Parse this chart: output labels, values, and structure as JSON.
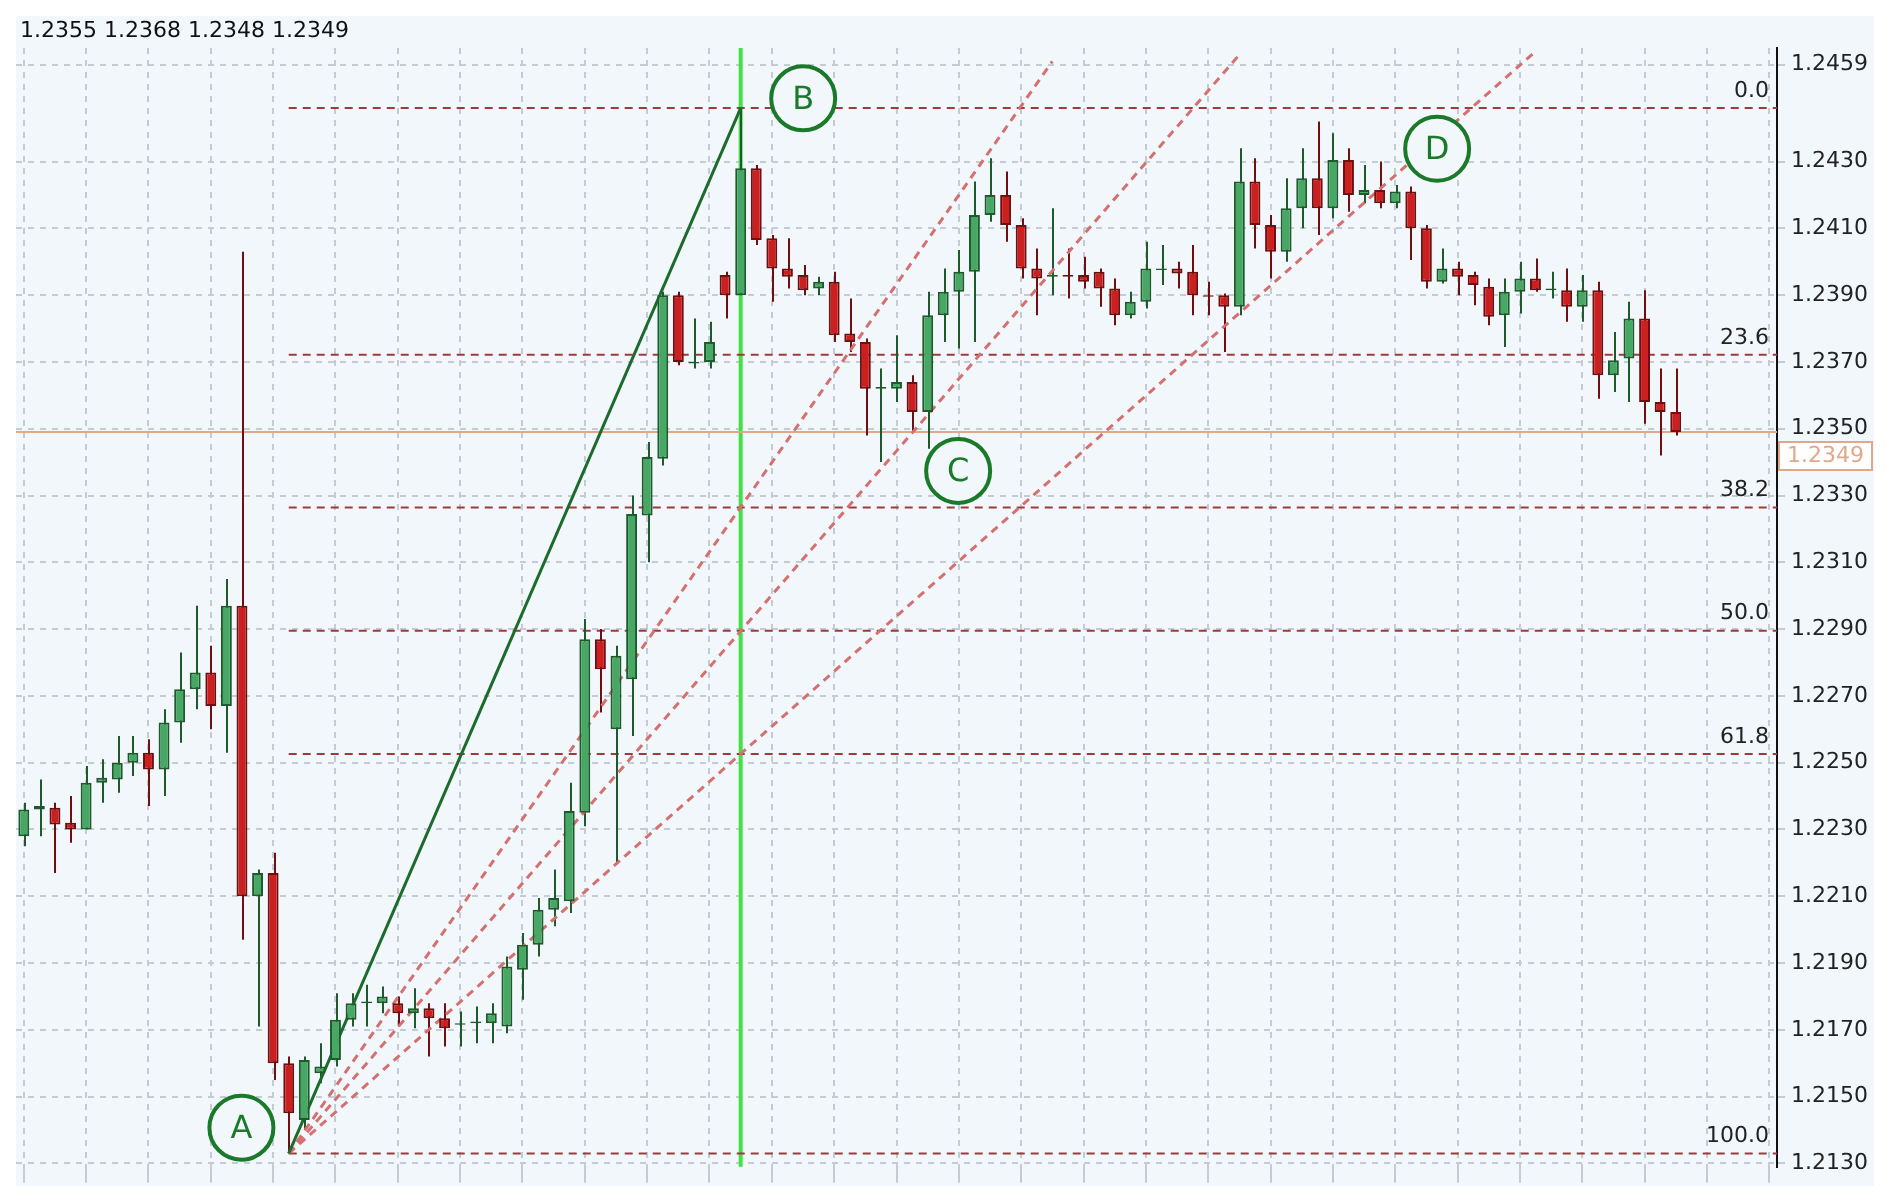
{
  "chart_data": {
    "type": "candlestick",
    "tick_labels": "y",
    "grid": true,
    "categories": [
      null,
      null,
      null,
      null,
      null,
      null,
      null,
      null,
      null,
      null,
      null,
      null,
      null,
      null,
      null,
      null,
      null,
      null,
      null,
      null,
      null,
      null,
      null,
      null,
      null,
      null,
      null,
      null,
      null,
      null,
      null,
      null,
      null,
      null,
      null,
      null,
      null,
      null,
      null,
      null,
      null,
      null,
      null,
      null,
      null,
      null,
      null,
      null,
      null,
      null,
      null,
      null,
      null,
      null,
      null,
      null,
      null,
      null,
      null,
      null,
      null,
      null,
      null,
      null,
      null,
      null,
      null,
      null,
      null,
      null,
      null,
      null,
      null,
      null,
      null,
      null,
      null,
      null,
      null,
      null,
      null,
      null,
      null,
      null,
      null,
      null,
      null,
      null,
      null,
      null,
      null,
      null,
      null,
      null,
      null,
      null,
      null,
      null,
      null,
      null,
      null,
      null,
      null,
      null,
      null,
      null,
      null,
      null,
      null,
      null,
      null,
      null,
      null
    ],
    "ylim": [
      1.2129,
      1.2464
    ],
    "yticks": [
      {
        "value": 1.213,
        "label": "1.2130"
      },
      {
        "value": 1.215,
        "label": "1.2150"
      },
      {
        "value": 1.217,
        "label": "1.2170"
      },
      {
        "value": 1.219,
        "label": "1.2190"
      },
      {
        "value": 1.221,
        "label": "1.2210"
      },
      {
        "value": 1.223,
        "label": "1.2230"
      },
      {
        "value": 1.225,
        "label": "1.2250"
      },
      {
        "value": 1.227,
        "label": "1.2270"
      },
      {
        "value": 1.229,
        "label": "1.2290"
      },
      {
        "value": 1.231,
        "label": "1.2310"
      },
      {
        "value": 1.233,
        "label": "1.2330"
      },
      {
        "value": 1.235,
        "label": "1.2350"
      },
      {
        "value": 1.237,
        "label": "1.2370"
      },
      {
        "value": 1.239,
        "label": "1.2390"
      },
      {
        "value": 1.241,
        "label": "1.2410"
      },
      {
        "value": 1.243,
        "label": "1.2430"
      },
      1.2459
    ],
    "y2lim": [
      101.28,
      -5.75
    ],
    "ohlc": [
      [
        1.2228,
        1.2238,
        1.2225,
        1.2236
      ],
      [
        1.2236,
        1.2245,
        1.2228,
        1.2237
      ],
      [
        1.22365,
        1.2238,
        1.2217,
        1.22315
      ],
      [
        1.2232,
        1.224,
        1.2226,
        1.223
      ],
      [
        1.223,
        1.2249,
        1.223,
        1.2244
      ],
      [
        1.2244,
        1.2251,
        1.2238,
        1.22455
      ],
      [
        1.2245,
        1.2258,
        1.2241,
        1.225
      ],
      [
        1.225,
        1.2258,
        1.2246,
        1.2253
      ],
      [
        1.2253,
        1.2257,
        1.2237,
        1.2248
      ],
      [
        1.2248,
        1.2266,
        1.224,
        1.2262
      ],
      [
        1.2262,
        1.2283,
        1.2256,
        1.2272
      ],
      [
        1.2272,
        1.2297,
        1.2266,
        1.2277
      ],
      [
        1.2277,
        1.2285,
        1.226,
        1.2267
      ],
      [
        1.2267,
        1.2305,
        1.2253,
        1.2297
      ],
      [
        1.2297,
        1.2403,
        1.2197,
        1.221
      ],
      [
        1.221,
        1.2218,
        1.2171,
        1.2217
      ],
      [
        1.2217,
        1.2223,
        1.2155,
        1.216
      ],
      [
        1.216,
        1.2162,
        1.2133,
        1.2145
      ],
      [
        1.2143,
        1.2162,
        1.214,
        1.2161
      ],
      [
        1.2157,
        1.2166,
        1.2154,
        1.2159
      ],
      [
        1.2161,
        1.2181,
        1.2159,
        1.2173
      ],
      [
        1.2173,
        1.2181,
        1.2171,
        1.2178
      ],
      [
        1.2178,
        1.21835,
        1.2171,
        1.21785
      ],
      [
        1.2178,
        1.2183,
        1.2175,
        1.218
      ],
      [
        1.2178,
        1.218,
        1.2171,
        1.2175
      ],
      [
        1.2175,
        1.21825,
        1.21705,
        1.21765
      ],
      [
        1.21765,
        1.2178,
        1.2162,
        1.21735
      ],
      [
        1.21735,
        1.2178,
        1.2165,
        1.21705
      ],
      [
        1.21715,
        1.21755,
        1.2165,
        1.2172
      ],
      [
        1.2172,
        1.2177,
        1.2166,
        1.21725
      ],
      [
        1.2172,
        1.2178,
        1.2166,
        1.2175
      ],
      [
        1.2171,
        1.2192,
        1.2169,
        1.2189
      ],
      [
        1.2188,
        1.2199,
        1.2179,
        1.21955
      ],
      [
        1.21955,
        1.22095,
        1.2192,
        1.2206
      ],
      [
        1.2206,
        1.2218,
        1.2201,
        1.22095
      ],
      [
        1.22085,
        1.2244,
        1.2205,
        1.22355
      ],
      [
        1.2235,
        1.2293,
        1.2231,
        1.2287
      ],
      [
        1.2287,
        1.229,
        1.2265,
        1.2278
      ],
      [
        1.226,
        1.2285,
        1.222,
        1.2282
      ],
      [
        1.2275,
        1.233,
        1.2258,
        1.23245
      ],
      [
        1.2324,
        1.2346,
        1.231,
        1.23415
      ],
      [
        1.2341,
        1.2391,
        1.2339,
        1.239
      ],
      [
        1.239,
        1.2391,
        1.2369,
        1.237
      ],
      [
        1.23695,
        1.2383,
        1.2368,
        1.237
      ],
      [
        1.237,
        1.2382,
        1.2368,
        1.2376
      ],
      [
        1.2396,
        1.2397,
        1.2383,
        1.239
      ],
      [
        1.239,
        1.2446,
        1.239,
        1.2428
      ],
      [
        1.2428,
        1.2429,
        1.2405,
        1.24065
      ],
      [
        1.2407,
        1.2408,
        1.2388,
        1.2398
      ],
      [
        1.2398,
        1.2407,
        1.2392,
        1.23955
      ],
      [
        1.2396,
        1.2399,
        1.239,
        1.23915
      ],
      [
        1.2392,
        1.23955,
        1.239,
        1.2394
      ],
      [
        1.2394,
        1.2397,
        1.2376,
        1.2378
      ],
      [
        1.23785,
        1.2389,
        1.2373,
        1.2376
      ],
      [
        1.2376,
        1.2377,
        1.2348,
        1.2362
      ],
      [
        1.2362,
        1.2368,
        1.234,
        1.23625
      ],
      [
        1.2362,
        1.2378,
        1.2358,
        1.2364
      ],
      [
        1.2364,
        1.2366,
        1.2349,
        1.2355
      ],
      [
        1.2355,
        1.2391,
        1.2344,
        1.2384
      ],
      [
        1.2384,
        1.2398,
        1.2376,
        1.2391
      ],
      [
        1.2391,
        1.24035,
        1.2374,
        1.2397
      ],
      [
        1.2397,
        1.2424,
        1.2376,
        1.2414
      ],
      [
        1.2414,
        1.2431,
        1.2412,
        1.242
      ],
      [
        1.242,
        1.2427,
        1.2406,
        1.2411
      ],
      [
        1.2411,
        1.2413,
        1.2395,
        1.2398
      ],
      [
        1.2398,
        1.2404,
        1.2384,
        1.2395
      ],
      [
        1.23955,
        1.2416,
        1.239,
        1.2396
      ],
      [
        1.2396,
        1.2404,
        1.2389,
        1.23955
      ],
      [
        1.2396,
        1.24015,
        1.2392,
        1.2394
      ],
      [
        1.2397,
        1.2398,
        1.23865,
        1.2392
      ],
      [
        1.2392,
        1.2395,
        1.2381,
        1.2384
      ],
      [
        1.2384,
        1.2391,
        1.2383,
        1.2388
      ],
      [
        1.2388,
        1.2406,
        1.2386,
        1.2398
      ],
      [
        1.23975,
        1.2405,
        1.2393,
        1.2398
      ],
      [
        1.2398,
        1.24,
        1.2392,
        1.23965
      ],
      [
        1.2397,
        1.2405,
        1.2384,
        1.239
      ],
      [
        1.239,
        1.2394,
        1.2384,
        1.23895
      ],
      [
        1.239,
        1.23905,
        1.2373,
        1.23865
      ],
      [
        1.23865,
        1.2434,
        1.2384,
        1.2424
      ],
      [
        1.2424,
        1.2431,
        1.2404,
        1.2411
      ],
      [
        1.2411,
        1.2414,
        1.2395,
        1.2403
      ],
      [
        1.2403,
        1.2425,
        1.24,
        1.2416
      ],
      [
        1.2416,
        1.2434,
        1.241,
        1.2425
      ],
      [
        1.2425,
        1.2442,
        1.2408,
        1.2416
      ],
      [
        1.2416,
        1.24385,
        1.2413,
        1.24305
      ],
      [
        1.24305,
        1.2434,
        1.2415,
        1.242
      ],
      [
        1.242,
        1.2429,
        1.24175,
        1.24215
      ],
      [
        1.24215,
        1.243,
        1.2416,
        1.24175
      ],
      [
        1.24175,
        1.2423,
        1.2416,
        1.2421
      ],
      [
        1.2421,
        1.24225,
        1.24005,
        1.241
      ],
      [
        1.241,
        1.2411,
        1.2392,
        1.2394
      ],
      [
        1.2394,
        1.2404,
        1.23935,
        1.2398
      ],
      [
        1.2398,
        1.24,
        1.239,
        1.23955
      ],
      [
        1.2396,
        1.2397,
        1.2387,
        1.2393
      ],
      [
        1.23925,
        1.2395,
        1.2381,
        1.23835
      ],
      [
        1.2384,
        1.2395,
        1.23745,
        1.2391
      ],
      [
        1.2391,
        1.24,
        1.23845,
        1.2395
      ],
      [
        1.2395,
        1.2401,
        1.2391,
        1.23915
      ],
      [
        1.23915,
        1.2397,
        1.2389,
        1.2392
      ],
      [
        1.23915,
        1.2398,
        1.2382,
        1.23865
      ],
      [
        1.23865,
        1.2396,
        1.2382,
        1.23915
      ],
      [
        1.23915,
        1.2394,
        1.2359,
        1.2366
      ],
      [
        1.2366,
        1.2379,
        1.2361,
        1.23705
      ],
      [
        1.2371,
        1.2388,
        1.2358,
        1.2383
      ],
      [
        1.2383,
        1.23915,
        1.23515,
        1.2358
      ],
      [
        1.2358,
        1.2368,
        1.2342,
        1.2355
      ],
      [
        1.2355,
        1.2368,
        1.2348,
        1.2349
      ],
      null,
      null,
      null,
      null,
      null,
      null
    ],
    "series": [
      {
        "type": "line",
        "color": "#1d6b2c",
        "line_style": "solid",
        "values": [
          null,
          null,
          null,
          null,
          null,
          null,
          null,
          null,
          null,
          null,
          null,
          null,
          null,
          null,
          null,
          null,
          null,
          1.2133,
          null,
          null,
          null,
          null,
          null,
          null,
          null,
          null,
          null,
          null,
          null,
          null,
          null,
          null,
          null,
          null,
          null,
          null,
          null,
          null,
          null,
          null,
          null,
          null,
          null,
          null,
          null,
          null,
          1.2446,
          null,
          null,
          null,
          null,
          null,
          null,
          null,
          null,
          null,
          null,
          null,
          null,
          null,
          null,
          null,
          null,
          null,
          null,
          null,
          null,
          null,
          null,
          null,
          null,
          null,
          null,
          null,
          null,
          null,
          null,
          null,
          null,
          null,
          null,
          null,
          null,
          null,
          null,
          null,
          null,
          null,
          null,
          null,
          null,
          null,
          null,
          null,
          null,
          null,
          null,
          null,
          null,
          null,
          null,
          null,
          null,
          null,
          null,
          null,
          null,
          null,
          null,
          null,
          null,
          null,
          null
        ]
      },
      {
        "type": "line",
        "color": "#d47070",
        "line_style": "dashed",
        "values": [
          null,
          null,
          null,
          null,
          null,
          null,
          null,
          null,
          null,
          null,
          null,
          null,
          null,
          null,
          null,
          null,
          null,
          1.2133,
          null,
          null,
          null,
          null,
          null,
          null,
          null,
          null,
          null,
          null,
          null,
          null,
          null,
          null,
          null,
          null,
          null,
          null,
          null,
          null,
          null,
          null,
          null,
          null,
          null,
          null,
          null,
          null,
          null,
          null,
          null,
          null,
          null,
          null,
          null,
          null,
          null,
          null,
          null,
          null,
          null,
          null,
          null,
          null,
          null,
          null,
          null,
          null,
          1.246,
          null,
          null,
          null,
          null,
          null,
          null,
          null,
          null,
          null,
          null,
          null,
          null,
          null,
          null,
          null,
          null,
          null,
          null,
          null,
          null,
          null,
          null,
          null,
          null,
          null,
          null,
          null,
          null,
          null,
          null,
          null,
          null,
          null,
          null,
          null,
          null,
          null,
          null,
          null,
          null,
          null,
          null,
          null,
          null,
          null,
          null
        ]
      },
      {
        "type": "line",
        "color": "#d47070",
        "line_style": "dashed",
        "values": [
          null,
          null,
          null,
          null,
          null,
          null,
          null,
          null,
          null,
          null,
          null,
          null,
          null,
          null,
          null,
          null,
          null,
          1.2133,
          null,
          null,
          null,
          null,
          null,
          null,
          null,
          null,
          null,
          null,
          null,
          null,
          null,
          null,
          null,
          null,
          null,
          null,
          null,
          null,
          null,
          null,
          null,
          null,
          null,
          null,
          null,
          null,
          null,
          null,
          null,
          null,
          null,
          null,
          null,
          null,
          null,
          null,
          null,
          null,
          null,
          null,
          null,
          null,
          null,
          null,
          null,
          null,
          null,
          null,
          null,
          null,
          null,
          null,
          null,
          null,
          null,
          null,
          null,
          null,
          1.2462,
          null,
          null,
          null,
          null,
          null,
          null,
          null,
          null,
          null,
          null,
          null,
          null,
          null,
          null,
          null,
          null,
          null,
          null,
          null,
          null,
          null,
          null,
          null,
          null,
          null,
          null,
          null,
          null,
          null,
          null,
          null,
          null,
          null,
          null
        ]
      },
      {
        "type": "line",
        "color": "#d47070",
        "line_style": "dashed",
        "values": [
          null,
          null,
          null,
          null,
          null,
          null,
          null,
          null,
          null,
          null,
          null,
          null,
          null,
          null,
          null,
          null,
          null,
          1.2133,
          null,
          null,
          null,
          null,
          null,
          null,
          null,
          null,
          null,
          null,
          null,
          null,
          null,
          null,
          null,
          null,
          null,
          null,
          null,
          null,
          null,
          null,
          null,
          null,
          null,
          null,
          null,
          null,
          null,
          null,
          null,
          null,
          null,
          null,
          null,
          null,
          null,
          null,
          null,
          null,
          null,
          null,
          null,
          null,
          null,
          null,
          null,
          null,
          null,
          null,
          null,
          null,
          null,
          null,
          null,
          null,
          null,
          null,
          null,
          null,
          null,
          null,
          null,
          null,
          null,
          null,
          null,
          null,
          null,
          null,
          null,
          null,
          null,
          null,
          null,
          null,
          null,
          null,
          null,
          1.2463,
          null,
          null,
          null,
          null,
          null,
          null,
          null,
          null,
          null,
          null,
          null,
          null,
          null,
          null,
          null
        ]
      }
    ],
    "ref_lines": [
      {
        "axis": "y2",
        "value": 0,
        "label": "0.0",
        "color": "#a03a3a",
        "line_style": "dashed"
      },
      {
        "axis": "y2",
        "value": 23.6,
        "label": "23.6",
        "color": "#a03a3a",
        "line_style": "dashed"
      },
      {
        "axis": "y2",
        "value": 38.2,
        "label": "38.2",
        "color": "#a03a3a",
        "line_style": "dashed"
      },
      {
        "axis": "y2",
        "value": 50,
        "label": "50.0",
        "color": "#a03a3a",
        "line_style": "dashed"
      },
      {
        "axis": "y2",
        "value": 61.8,
        "label": "61.8",
        "color": "#a03a3a",
        "line_style": "dashed"
      },
      {
        "axis": "y2",
        "value": 100,
        "label": "100.0",
        "color": "#a03a3a",
        "line_style": "dashed"
      },
      {
        "axis": "y",
        "value": 1.2349,
        "label": "1.2349",
        "color": "#e0a888",
        "line_style": "solid"
      }
    ],
    "annotations": [
      "1.2355 1.2368 1.2348 1.2349",
      "A",
      "B",
      "C",
      "D"
    ]
  }
}
